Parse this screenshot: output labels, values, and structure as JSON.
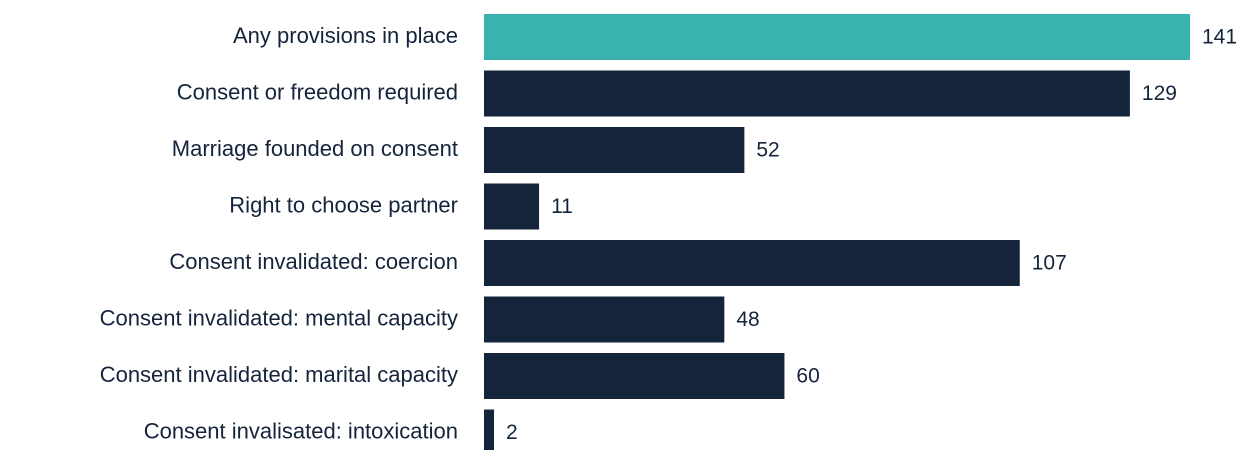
{
  "chart_data": {
    "type": "bar",
    "orientation": "horizontal",
    "categories": [
      "Any provisions in place",
      "Consent or freedom required",
      "Marriage founded on consent",
      "Right to choose partner",
      "Consent invalidated: coercion",
      "Consent invalidated: mental capacity",
      "Consent invalidated: marital capacity",
      "Consent invalisated: intoxication"
    ],
    "values": [
      141,
      129,
      52,
      11,
      107,
      48,
      60,
      2
    ],
    "colors": [
      "#3ab3b0",
      "#14243b",
      "#14243b",
      "#14243b",
      "#14243b",
      "#14243b",
      "#14243b",
      "#14243b"
    ],
    "xlim": [
      0,
      141
    ]
  }
}
